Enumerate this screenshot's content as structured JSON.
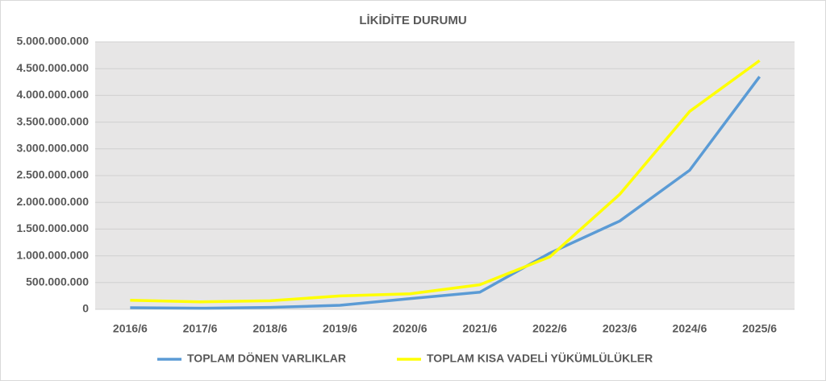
{
  "chart_data": {
    "type": "line",
    "title": "LİKİDİTE DURUMU",
    "categories": [
      "2016/6",
      "2017/6",
      "2018/6",
      "2019/6",
      "2020/6",
      "2021/6",
      "2022/6",
      "2023/6",
      "2024/6",
      "2025/6"
    ],
    "series": [
      {
        "name": "TOPLAM DÖNEN VARLIKLAR",
        "color": "#5b9bd5",
        "values": [
          30000000,
          20000000,
          35000000,
          75000000,
          200000000,
          320000000,
          1050000000,
          1650000000,
          2600000000,
          4350000000
        ]
      },
      {
        "name": "TOPLAM KISA VADELİ YÜKÜMLÜLÜKLER",
        "color": "#ffff00",
        "values": [
          170000000,
          140000000,
          160000000,
          250000000,
          290000000,
          460000000,
          980000000,
          2150000000,
          3700000000,
          4650000000
        ]
      }
    ],
    "ylim": [
      0,
      5000000000
    ],
    "yticks": [
      0,
      {
        "value": 500000000,
        "label": "500.000.000"
      },
      {
        "value": 1000000000,
        "label": "1.000.000.000"
      },
      {
        "value": 1500000000,
        "label": "1.500.000.000"
      },
      {
        "value": 2000000000,
        "label": "2.000.000.000"
      },
      {
        "value": 2500000000,
        "label": "2.500.000.000"
      },
      {
        "value": 3000000000,
        "label": "3.000.000.000"
      },
      {
        "value": 3500000000,
        "label": "3.500.000.000"
      },
      {
        "value": 4000000000,
        "label": "4.000.000.000"
      },
      {
        "value": 4500000000,
        "label": "4.500.000.000"
      },
      {
        "value": 5000000000,
        "label": "5.000.000.000"
      }
    ],
    "grid": true
  }
}
